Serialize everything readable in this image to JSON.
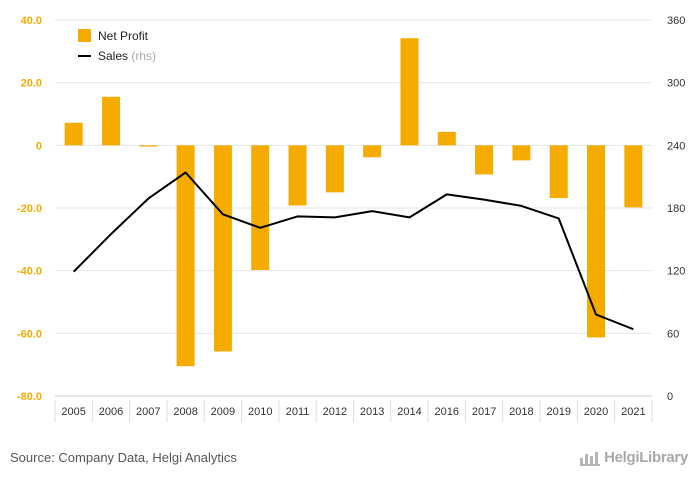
{
  "chart_data": {
    "type": "bar",
    "categories": [
      "2005",
      "2006",
      "2007",
      "2008",
      "2009",
      "2010",
      "2011",
      "2012",
      "2013",
      "2014",
      "2016",
      "2017",
      "2018",
      "2019",
      "2020",
      "2021"
    ],
    "series": [
      {
        "name": "Net Profit",
        "type": "bar",
        "axis": "left",
        "color": "#f5ab00",
        "values": [
          7.2,
          15.5,
          -0.4,
          -70.5,
          -65.8,
          -39.8,
          -19.2,
          -15.0,
          -3.8,
          34.2,
          4.3,
          -9.3,
          -4.8,
          -16.8,
          -61.3,
          -19.8
        ]
      },
      {
        "name": "Sales",
        "label_suffix": "(rhs)",
        "type": "line",
        "axis": "right",
        "color": "#000000",
        "values": [
          119,
          155,
          189,
          214,
          174,
          161,
          172,
          171,
          177,
          171,
          193,
          188,
          182,
          170,
          78,
          64
        ]
      }
    ],
    "y_left": {
      "min": -80,
      "max": 40,
      "ticks": [
        "40.0",
        "20.0",
        "0",
        "-20.0",
        "-40.0",
        "-60.0",
        "-80.0"
      ]
    },
    "y_right": {
      "min": 0,
      "max": 360,
      "ticks": [
        "360",
        "300",
        "240",
        "180",
        "120",
        "60",
        "0"
      ]
    },
    "grid": true,
    "legend": "top-left",
    "colors": {
      "bar": "#f5ab00",
      "line": "#000000",
      "left_tick": "#f5ab00",
      "right_tick": "#333333",
      "grid": "#e6e6e6"
    }
  },
  "source": "Source: Company Data, Helgi Analytics",
  "logo_text": "HelgiLibrary"
}
